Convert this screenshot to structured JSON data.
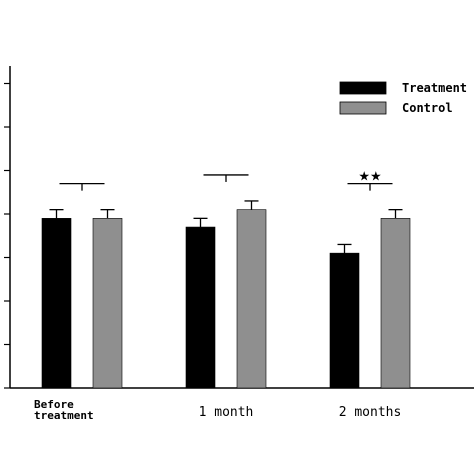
{
  "chart_data": {
    "type": "bar",
    "categories": [
      "Before\ntreatment",
      "1 month",
      "2 months"
    ],
    "series": [
      {
        "name": "Treatment",
        "color": "#000000",
        "values": [
          3.9,
          3.7,
          3.1
        ],
        "errors": [
          0.2,
          0.2,
          0.2
        ]
      },
      {
        "name": "Control",
        "color": "#8f8f8f",
        "values": [
          3.9,
          4.1,
          3.9
        ],
        "errors": [
          0.2,
          0.2,
          0.2
        ]
      }
    ],
    "annotations": [
      "",
      "",
      "★★"
    ],
    "ylim": [
      0,
      7.4
    ],
    "ytick_step": 1,
    "title": "",
    "xlabel": "",
    "ylabel": "",
    "grid": false,
    "legend": "top-right"
  }
}
